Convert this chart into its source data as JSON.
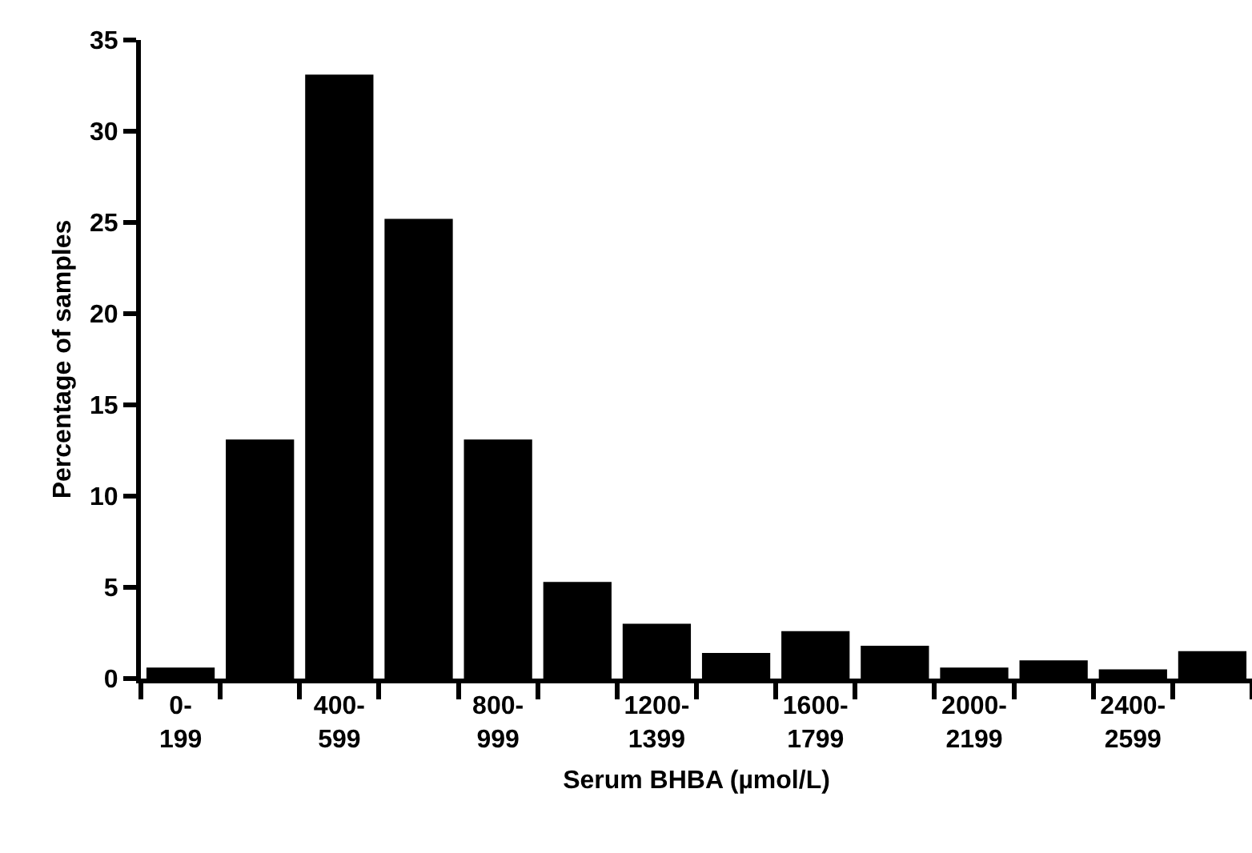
{
  "chart_data": {
    "type": "bar",
    "xlabel": "Serum BHBA (µmol/L)",
    "ylabel": "Percentage of samples",
    "categories": [
      "0-\n199",
      null,
      "400-\n599",
      null,
      "800-\n999",
      null,
      "1200-\n1399",
      null,
      "1600-\n1799",
      null,
      "2000-\n2199",
      null,
      "2400-\n2599",
      null
    ],
    "values": [
      0.6,
      13.1,
      33.1,
      25.2,
      13.1,
      5.3,
      3.0,
      1.4,
      2.6,
      1.8,
      0.6,
      1.0,
      0.5,
      1.5
    ],
    "color": "#000000",
    "ylim": [
      0,
      35
    ],
    "yticks": [
      0,
      5,
      10,
      15,
      20,
      25,
      30,
      35
    ]
  }
}
